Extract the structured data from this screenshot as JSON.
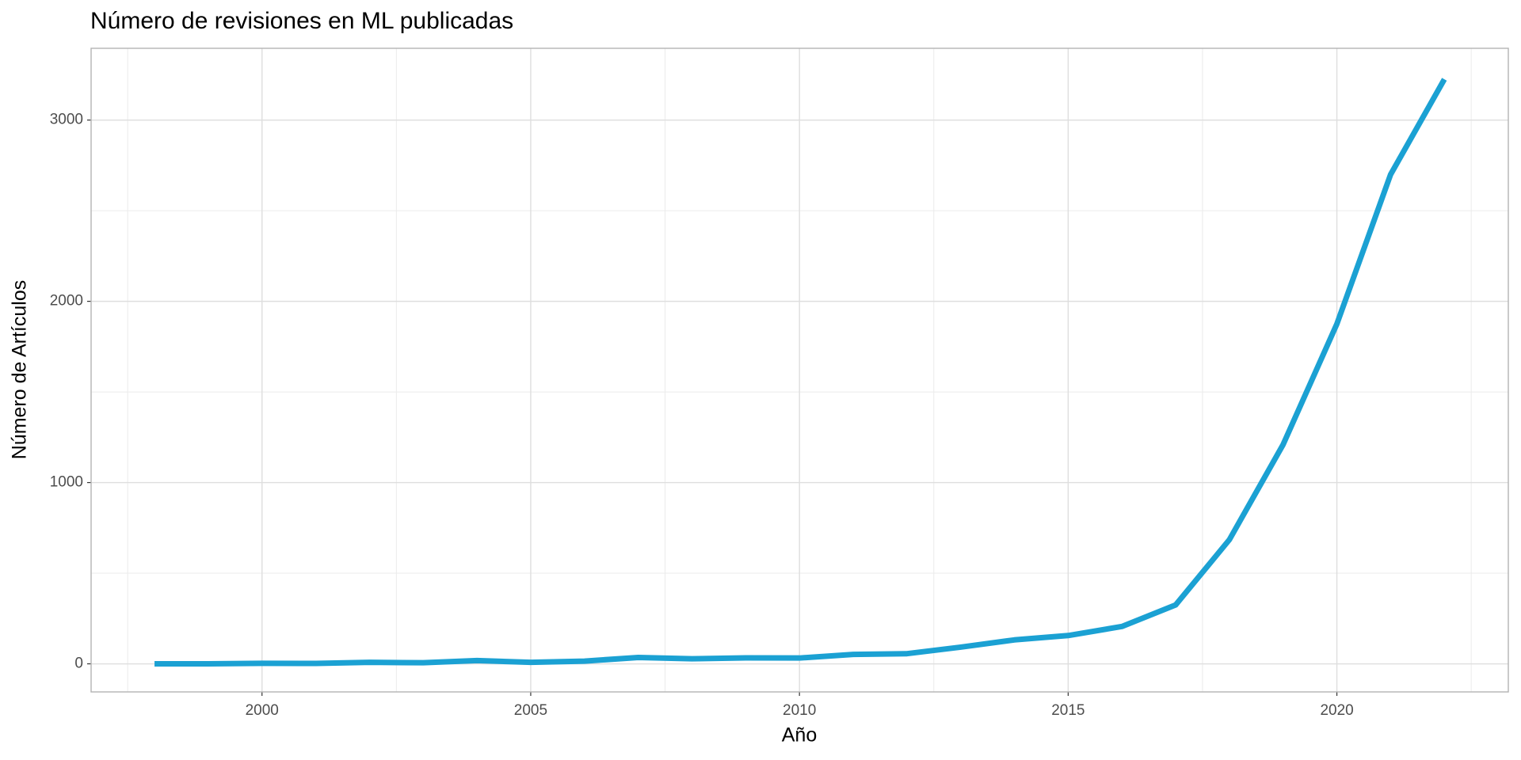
{
  "chart_data": {
    "type": "line",
    "title": "Número de revisiones en ML publicadas",
    "x_label": "Año",
    "y_label": "Número de Artículos",
    "x": [
      1998,
      1999,
      2000,
      2001,
      2002,
      2003,
      2004,
      2005,
      2006,
      2007,
      2008,
      2009,
      2010,
      2011,
      2012,
      2013,
      2014,
      2015,
      2016,
      2017,
      2018,
      2019,
      2020,
      2021,
      2022
    ],
    "series": [
      {
        "name": "Artículos",
        "color": "#1ba1d3",
        "values": [
          0,
          0,
          3,
          2,
          8,
          6,
          18,
          8,
          15,
          35,
          28,
          33,
          32,
          52,
          56,
          92,
          132,
          156,
          206,
          325,
          685,
          1210,
          1875,
          2700,
          3225
        ]
      }
    ],
    "xlim": [
      1996.82,
      2023.19
    ],
    "xticks": [
      2000,
      2005,
      2010,
      2015,
      2020
    ],
    "ylim": [
      -155,
      3396
    ],
    "yticks": [
      0,
      1000,
      2000,
      3000
    ],
    "grid": true
  }
}
